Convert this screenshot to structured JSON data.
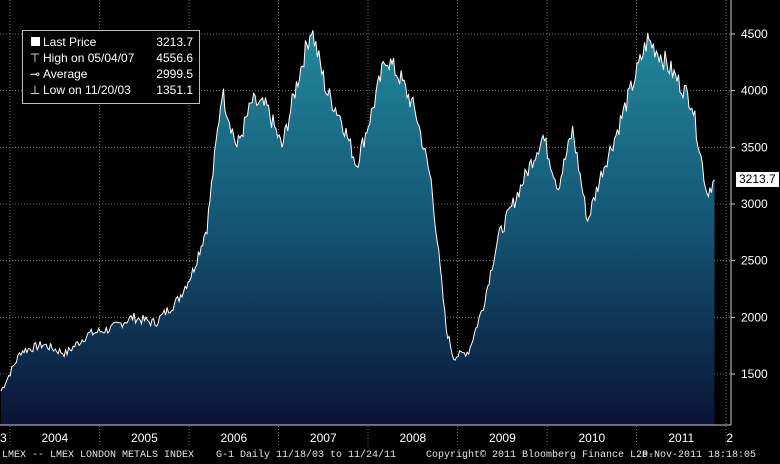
{
  "chart_data": {
    "type": "area",
    "title": "",
    "ylim": [
      1050,
      4800
    ],
    "yticks": [
      1500,
      2000,
      2500,
      3000,
      3500,
      4000,
      4500
    ],
    "ytick_labels": [
      "1500",
      "2000",
      "2500",
      "3000",
      "3500",
      "4000",
      "4500"
    ],
    "xticks": [
      "2004",
      "2005",
      "2006",
      "2007",
      "2008",
      "2009",
      "2010",
      "2011"
    ],
    "series": [
      {
        "name": "LMEX",
        "x": [
          "2003-11",
          "2004-02",
          "2004-05",
          "2004-08",
          "2004-11",
          "2005-02",
          "2005-05",
          "2005-08",
          "2005-11",
          "2006-01",
          "2006-03",
          "2006-05",
          "2006-07",
          "2006-09",
          "2006-11",
          "2007-01",
          "2007-03",
          "2007-05",
          "2007-07",
          "2007-09",
          "2007-11",
          "2008-01",
          "2008-03",
          "2008-05",
          "2008-07",
          "2008-09",
          "2008-11",
          "2008-12",
          "2009-02",
          "2009-04",
          "2009-06",
          "2009-08",
          "2009-10",
          "2009-12",
          "2010-02",
          "2010-04",
          "2010-06",
          "2010-08",
          "2010-10",
          "2010-12",
          "2011-02",
          "2011-04",
          "2011-06",
          "2011-08",
          "2011-10",
          "2011-11"
        ],
        "values": [
          1351,
          1700,
          1760,
          1680,
          1850,
          1900,
          2000,
          1950,
          2150,
          2400,
          2800,
          4000,
          3500,
          3900,
          3850,
          3500,
          4050,
          4556,
          4000,
          3750,
          3350,
          3800,
          4300,
          4100,
          3800,
          3200,
          1900,
          1650,
          1700,
          2100,
          2700,
          3000,
          3300,
          3600,
          3150,
          3650,
          2850,
          3300,
          3650,
          4050,
          4450,
          4300,
          4100,
          3900,
          3100,
          3213
        ]
      }
    ],
    "legend": [
      {
        "label": "Last Price",
        "value": "3213.7"
      },
      {
        "label": "High on 05/04/07",
        "value": "4556.6"
      },
      {
        "label": "Average",
        "value": "2999.5"
      },
      {
        "label": "Low on 11/20/03",
        "value": "1351.1"
      }
    ],
    "last_tag": "3213.7",
    "colors": {
      "background": "#000000",
      "fill_top": "#1f7e93",
      "fill_bottom": "#0a1530",
      "line": "#ffffff",
      "grid": "#8a8a8a"
    },
    "grid": true,
    "legend_position": "top-left",
    "x_left_partial": "3",
    "x_right_partial": "2"
  },
  "footer": {
    "left": "LMEX -- LMEX LONDON METALS INDEX",
    "mid": "G-1  Daily  11/18/03 to 11/24/11",
    "copyright": "Copyright© 2011 Bloomberg Finance L.P.",
    "timestamp": "25-Nov-2011 18:18:05"
  }
}
